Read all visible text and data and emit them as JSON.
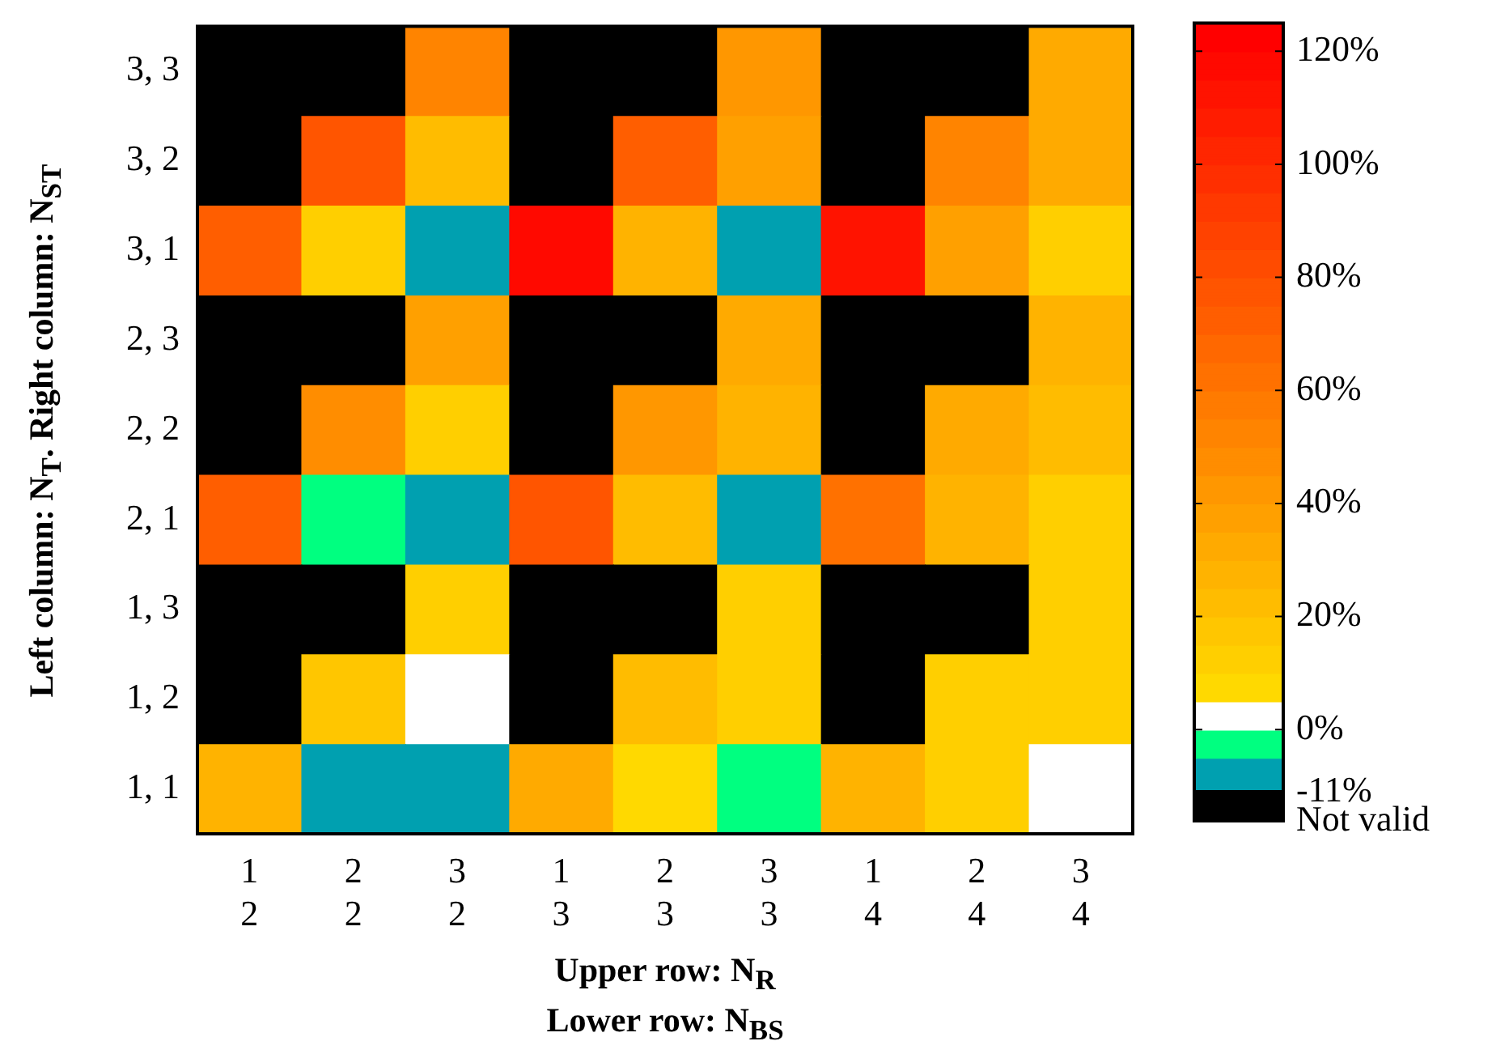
{
  "chart_data": {
    "type": "heatmap",
    "xlabel": "Upper row: N$_{R}$\nLower row: N$_{BS}$",
    "ylabel": "Left column: N$_{T}$. Right column: N$_{ST}$",
    "categories": [
      "1\n2",
      "2\n2",
      "3\n2",
      "1\n3",
      "2\n3",
      "3\n3",
      "1\n4",
      "2\n4",
      "3\n4"
    ],
    "y_categories": [
      "3, 3",
      "3, 2",
      "3, 1",
      "2, 3",
      "2, 2",
      "2, 1",
      "1, 3",
      "1, 2",
      "1, 1"
    ],
    "cells": [
      [
        null,
        null,
        50,
        null,
        null,
        40,
        null,
        null,
        30
      ],
      [
        null,
        75,
        20,
        null,
        70,
        35,
        null,
        50,
        32
      ],
      [
        70,
        10,
        -8,
        115,
        27,
        -8,
        112,
        37,
        10
      ],
      [
        null,
        null,
        37,
        null,
        null,
        30,
        null,
        null,
        27
      ],
      [
        null,
        47,
        12,
        null,
        42,
        25,
        null,
        32,
        22
      ],
      [
        70,
        -3,
        -8,
        78,
        22,
        -8,
        62,
        25,
        10
      ],
      [
        null,
        null,
        12,
        null,
        null,
        10,
        null,
        null,
        10
      ],
      [
        null,
        17,
        2,
        null,
        22,
        12,
        null,
        12,
        12
      ],
      [
        27,
        -8,
        -8,
        32,
        8,
        -3,
        27,
        10,
        2
      ]
    ],
    "clim": [
      -11,
      125
    ],
    "cticks": [
      {
        "value": -11,
        "label": "-11%"
      },
      {
        "value": 0,
        "label": "0%"
      },
      {
        "value": 20,
        "label": "20%"
      },
      {
        "value": 40,
        "label": "40%"
      },
      {
        "value": 60,
        "label": "60%"
      },
      {
        "value": 80,
        "label": "80%"
      },
      {
        "value": 100,
        "label": "100%"
      },
      {
        "value": 120,
        "label": "120%"
      }
    ],
    "annotations": [
      "Not valid"
    ]
  }
}
